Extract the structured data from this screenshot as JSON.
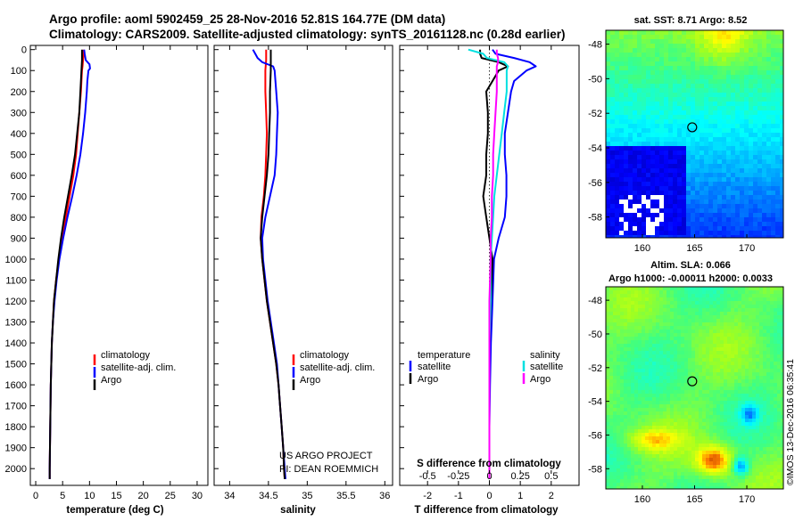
{
  "title_line1": "Argo profile: aoml 5902459_25 28-Nov-2016 52.81S 164.77E (DM data)",
  "title_line2": "Climatology: CARS2009. Satellite-adjusted climatology: synTS_20161128.nc (0.28d earlier)",
  "depth_ticks": [
    0,
    100,
    200,
    300,
    400,
    500,
    600,
    700,
    800,
    900,
    1000,
    1100,
    1200,
    1300,
    1400,
    1500,
    1600,
    1700,
    1800,
    1900,
    2000
  ],
  "credit_line1": "US ARGO PROJECT",
  "credit_line2": "PI: DEAN ROEMMICH",
  "imos_stamp": "©IMOS 13-Dec-2016 06:35:41",
  "colors": {
    "climatology": "#ff0000",
    "satellite": "#0000ff",
    "argo": "#000000",
    "sat_salinity": "#00e0e0",
    "argo_salinity": "#ff00ff"
  },
  "chart_data": [
    {
      "type": "line",
      "name": "temperature",
      "xlabel": "temperature (deg C)",
      "xlim": [
        -1,
        32
      ],
      "ylim": [
        2080,
        -20
      ],
      "xticks": [
        0,
        5,
        10,
        15,
        20,
        25,
        30
      ],
      "legend": {
        "position": "bottom-center",
        "entries": [
          "climatology",
          "satellite-adj. clim.",
          "Argo"
        ]
      },
      "series": [
        {
          "name": "climatology",
          "color": "climatology",
          "depth": [
            0,
            20,
            50,
            80,
            100,
            150,
            200,
            300,
            400,
            500,
            600,
            700,
            800,
            900,
            1000,
            1100,
            1200,
            1300,
            1400,
            1600,
            1800,
            2000,
            2050
          ],
          "values": [
            8.9,
            8.9,
            8.8,
            8.7,
            8.6,
            8.5,
            8.4,
            8.1,
            7.8,
            7.5,
            7.0,
            6.3,
            5.6,
            4.9,
            4.3,
            3.8,
            3.4,
            3.2,
            3.0,
            2.8,
            2.7,
            2.6,
            2.6
          ]
        },
        {
          "name": "satellite-adj. clim.",
          "color": "satellite",
          "depth": [
            0,
            20,
            50,
            70,
            90,
            100,
            150,
            200,
            300,
            400,
            500,
            600,
            700,
            800,
            900,
            1000,
            1100,
            1200,
            1300,
            1400,
            1600,
            1800,
            2000,
            2050
          ],
          "values": [
            9.0,
            9.1,
            9.3,
            10.0,
            10.1,
            9.8,
            9.6,
            9.5,
            9.2,
            8.8,
            8.3,
            7.6,
            6.8,
            5.9,
            5.1,
            4.4,
            3.9,
            3.5,
            3.2,
            3.0,
            2.8,
            2.7,
            2.6,
            2.6
          ]
        },
        {
          "name": "Argo",
          "color": "argo",
          "depth": [
            0,
            20,
            50,
            100,
            150,
            200,
            300,
            400,
            500,
            600,
            700,
            800,
            900,
            1000,
            1100,
            1200,
            1300,
            1400,
            1600,
            1800,
            2000,
            2050
          ],
          "values": [
            8.6,
            8.6,
            8.6,
            8.5,
            8.4,
            8.3,
            8.1,
            7.7,
            7.3,
            6.7,
            6.0,
            5.3,
            4.7,
            4.2,
            3.8,
            3.4,
            3.2,
            3.0,
            2.8,
            2.7,
            2.6,
            2.6
          ]
        }
      ]
    },
    {
      "type": "line",
      "name": "salinity",
      "xlabel": "salinity",
      "xlim": [
        33.8,
        36.1
      ],
      "ylim": [
        2080,
        -20
      ],
      "xticks": [
        34,
        34.5,
        35,
        35.5,
        36
      ],
      "legend": {
        "position": "bottom-center",
        "entries": [
          "climatology",
          "satellite-adj. clim.",
          "Argo"
        ]
      },
      "series": [
        {
          "name": "climatology",
          "color": "climatology",
          "depth": [
            0,
            50,
            100,
            200,
            300,
            400,
            500,
            600,
            700,
            800,
            900,
            1000,
            1100,
            1200,
            1300,
            1400,
            1500,
            1600,
            1700,
            1800,
            1900,
            2000,
            2050
          ],
          "values": [
            34.47,
            34.47,
            34.46,
            34.46,
            34.47,
            34.48,
            34.47,
            34.46,
            34.44,
            34.41,
            34.4,
            34.42,
            34.45,
            34.48,
            34.52,
            34.56,
            34.6,
            34.63,
            34.65,
            34.67,
            34.69,
            34.7,
            34.71
          ]
        },
        {
          "name": "satellite-adj. clim.",
          "color": "satellite",
          "depth": [
            0,
            20,
            40,
            60,
            80,
            100,
            150,
            200,
            300,
            400,
            500,
            600,
            700,
            800,
            900,
            1000,
            1100,
            1200,
            1300,
            1400,
            1500,
            1600,
            1700,
            1800,
            1900,
            2000,
            2050
          ],
          "values": [
            34.3,
            34.33,
            34.36,
            34.42,
            34.56,
            34.58,
            34.59,
            34.6,
            34.62,
            34.61,
            34.6,
            34.58,
            34.52,
            34.46,
            34.42,
            34.43,
            34.46,
            34.49,
            34.53,
            34.57,
            34.61,
            34.63,
            34.65,
            34.67,
            34.69,
            34.71,
            34.72
          ]
        },
        {
          "name": "Argo",
          "color": "argo",
          "depth": [
            0,
            50,
            100,
            200,
            300,
            400,
            500,
            600,
            700,
            800,
            900,
            1000,
            1100,
            1200,
            1300,
            1400,
            1500,
            1600,
            1700,
            1800,
            1900,
            2000,
            2050
          ],
          "values": [
            34.53,
            34.53,
            34.53,
            34.52,
            34.52,
            34.51,
            34.5,
            34.48,
            34.45,
            34.42,
            34.4,
            34.42,
            34.45,
            34.48,
            34.52,
            34.56,
            34.6,
            34.63,
            34.65,
            34.67,
            34.69,
            34.7,
            34.71
          ]
        }
      ]
    },
    {
      "type": "line",
      "name": "difference",
      "xlabel": "T difference from climatology",
      "top_axis_label": "S difference from climatology",
      "xlim": [
        -2.9,
        2.9
      ],
      "ylim": [
        2080,
        -20
      ],
      "xticks": [
        -2,
        -1,
        0,
        1,
        2
      ],
      "sticks": [
        -0.5,
        -0.25,
        0,
        0.25,
        0.5
      ],
      "stick_labels": [
        "-0.5",
        "-0.25",
        "0",
        "0.25",
        "0.5"
      ],
      "legend": {
        "position": "bottom",
        "temperature_title": "temperature",
        "salinity_title": "salinity",
        "entries": [
          "satellite",
          "Argo",
          "satellite",
          "Argo"
        ]
      },
      "series": [
        {
          "name": "satellite",
          "group": "temperature",
          "color": "satellite",
          "depth": [
            0,
            20,
            40,
            60,
            80,
            100,
            150,
            200,
            300,
            400,
            500,
            600,
            700,
            800,
            900,
            1000,
            1200,
            1400,
            1600,
            1800,
            2000,
            2050
          ],
          "values": [
            0.1,
            0.2,
            0.8,
            1.3,
            1.5,
            1.2,
            0.8,
            0.7,
            0.6,
            0.5,
            0.5,
            0.55,
            0.55,
            0.5,
            0.3,
            0.15,
            0.1,
            0.05,
            0.02,
            0.0,
            0.0,
            0.0
          ]
        },
        {
          "name": "Argo",
          "group": "temperature",
          "color": "argo",
          "depth": [
            0,
            20,
            40,
            60,
            80,
            100,
            150,
            200,
            300,
            400,
            500,
            600,
            700,
            800,
            900,
            1000,
            1200,
            1400,
            1600,
            1800,
            2000,
            2050
          ],
          "values": [
            -0.3,
            -0.3,
            -0.25,
            0.3,
            0.6,
            0.3,
            0.1,
            -0.1,
            -0.05,
            -0.05,
            -0.1,
            -0.1,
            -0.2,
            -0.1,
            0.0,
            0.1,
            0.05,
            0.0,
            0.0,
            0.0,
            0.0,
            0.0
          ]
        },
        {
          "name": "satellite",
          "group": "salinity",
          "color": "sat_salinity",
          "depth": [
            0,
            20,
            40,
            60,
            80,
            100,
            150,
            200,
            300,
            400,
            500,
            600,
            700,
            800,
            900,
            1000,
            1200,
            1400,
            1600,
            1800,
            2000,
            2050
          ],
          "values": [
            -0.17,
            -0.05,
            -0.02,
            0.12,
            0.15,
            0.14,
            0.14,
            0.14,
            0.12,
            0.1,
            0.08,
            0.06,
            0.04,
            0.03,
            0.02,
            0.01,
            0.01,
            0.0,
            0.0,
            0.0,
            0.0,
            0.0
          ]
        },
        {
          "name": "Argo",
          "group": "salinity",
          "color": "argo_salinity",
          "depth": [
            0,
            20,
            40,
            60,
            80,
            100,
            150,
            200,
            300,
            400,
            500,
            600,
            700,
            800,
            900,
            1000,
            1200,
            1400,
            1600,
            1800,
            2000,
            2050
          ],
          "values": [
            0.06,
            0.06,
            0.07,
            0.07,
            0.06,
            0.06,
            0.06,
            0.06,
            0.05,
            0.04,
            0.03,
            0.03,
            0.02,
            0.02,
            0.01,
            0.01,
            0.0,
            0.0,
            0.0,
            0.0,
            0.0,
            0.0
          ]
        }
      ]
    },
    {
      "type": "heatmap",
      "name": "sst_map",
      "title": "sat. SST: 8.71 Argo: 8.52",
      "xlim": [
        156.5,
        173.5
      ],
      "ylim": [
        -59.2,
        -47.2
      ],
      "xticks": [
        160,
        165,
        170
      ],
      "yticks": [
        -48,
        -50,
        -52,
        -54,
        -56,
        -58
      ],
      "marker": {
        "lon": 164.77,
        "lat": -52.81
      }
    },
    {
      "type": "heatmap",
      "name": "sla_map",
      "title": "Altim. SLA: 0.066",
      "subtitle": "Argo h1000: -0.00011 h2000: 0.0033",
      "xlim": [
        156.5,
        173.5
      ],
      "ylim": [
        -59.2,
        -47.2
      ],
      "xticks": [
        160,
        165,
        170
      ],
      "yticks": [
        -48,
        -50,
        -52,
        -54,
        -56,
        -58
      ],
      "marker": {
        "lon": 164.77,
        "lat": -52.81
      }
    }
  ]
}
